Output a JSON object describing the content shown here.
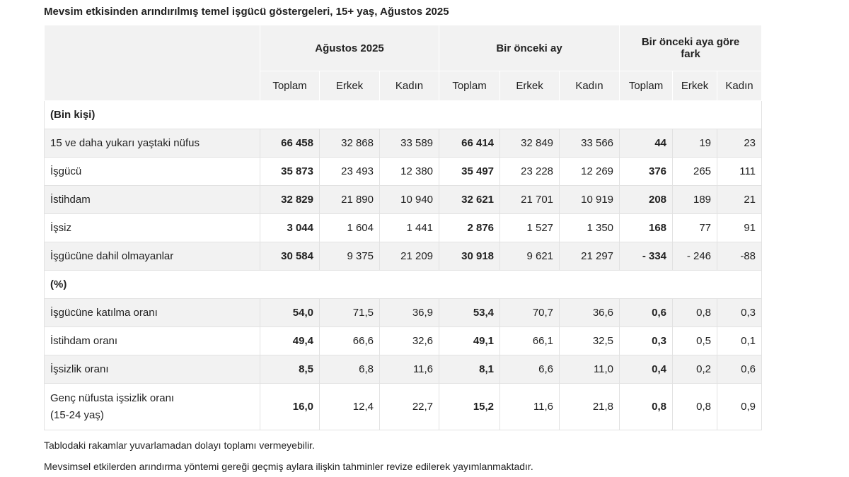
{
  "title": "Mevsim etkisinden arındırılmış temel işgücü göstergeleri, 15+ yaş, Ağustos 2025",
  "table": {
    "groups": [
      "Ağustos 2025",
      "Bir önceki ay",
      "Bir önceki aya göre fark"
    ],
    "subheaders": [
      "Toplam",
      "Erkek",
      "Kadın",
      "Toplam",
      "Erkek",
      "Kadın",
      "Toplam",
      "Erkek",
      "Kadın"
    ],
    "rows": [
      {
        "label": "(Bin kişi)"
      },
      {
        "label": "15 ve daha yukarı yaştaki nüfus",
        "values": [
          "66 458",
          "32 868",
          "33 589",
          "66 414",
          "32 849",
          "33 566",
          "44",
          "19",
          "23"
        ]
      },
      {
        "label": "İşgücü",
        "values": [
          "35 873",
          "23 493",
          "12 380",
          "35 497",
          "23 228",
          "12 269",
          "376",
          "265",
          "111"
        ]
      },
      {
        "label": "İstihdam",
        "values": [
          "32 829",
          "21 890",
          "10 940",
          "32 621",
          "21 701",
          "10 919",
          "208",
          "189",
          "21"
        ]
      },
      {
        "label": "İşsiz",
        "values": [
          "3 044",
          "1 604",
          "1 441",
          "2 876",
          "1 527",
          "1 350",
          "168",
          "77",
          "91"
        ]
      },
      {
        "label": "İşgücüne dahil olmayanlar",
        "values": [
          "30 584",
          "9 375",
          "21 209",
          "30 918",
          "9 621",
          "21 297",
          "- 334",
          "- 246",
          "-88"
        ]
      },
      {
        "label": "(%)"
      },
      {
        "label": "İşgücüne katılma oranı",
        "values": [
          "54,0",
          "71,5",
          "36,9",
          "53,4",
          "70,7",
          "36,6",
          "0,6",
          "0,8",
          "0,3"
        ]
      },
      {
        "label": "İstihdam oranı",
        "values": [
          "49,4",
          "66,6",
          "32,6",
          "49,1",
          "66,1",
          "32,5",
          "0,3",
          "0,5",
          "0,1"
        ]
      },
      {
        "label": "İşsizlik oranı",
        "values": [
          "8,5",
          "6,8",
          "11,6",
          "8,1",
          "6,6",
          "11,0",
          "0,4",
          "0,2",
          "0,6"
        ]
      },
      {
        "label": "Genç nüfusta işsizlik oranı\n(15-24 yaş)",
        "values": [
          "16,0",
          "12,4",
          "22,7",
          "15,2",
          "11,6",
          "21,8",
          "0,8",
          "0,8",
          "0,9"
        ]
      }
    ]
  },
  "notes": [
    "Tablodaki rakamlar yuvarlamadan dolayı toplamı vermeyebilir.",
    "Mevsimsel etkilerden arındırma yöntemi gereği geçmiş aylara ilişkin tahminler revize edilerek yayımlanmaktadır."
  ]
}
